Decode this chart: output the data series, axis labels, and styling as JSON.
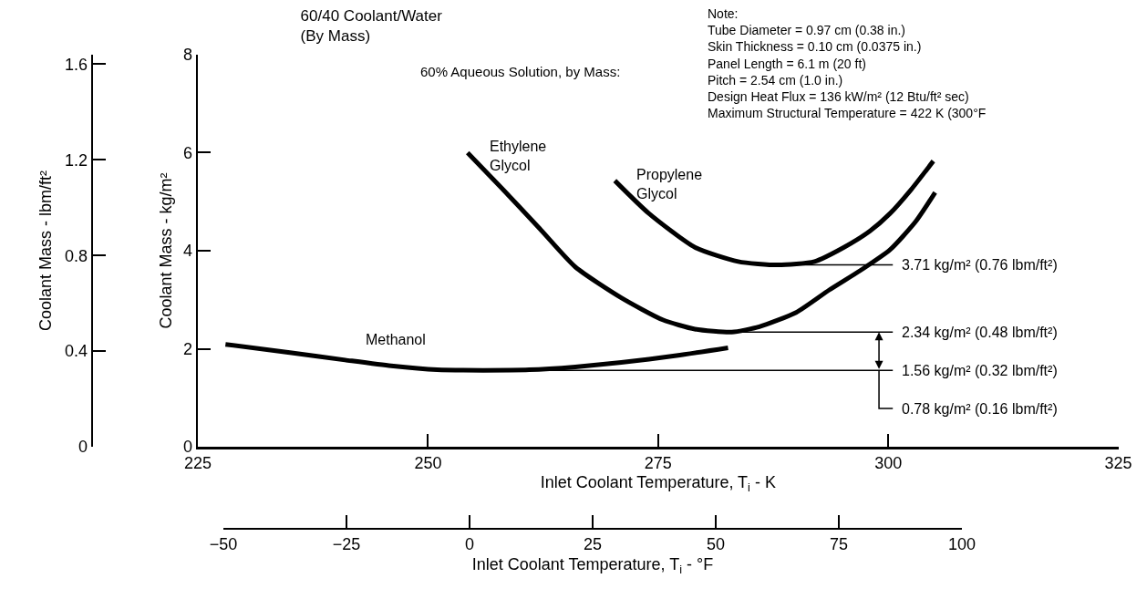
{
  "chart_data": {
    "type": "line",
    "title": "60/40 Coolant/Water",
    "subtitle": "(By Mass)",
    "xlabel": "Inlet Coolant Temperature, T$_{i}$ - K",
    "ylabel": "Coolant Mass - kg/m²",
    "y2label": "Coolant Mass - lbm/ft²",
    "x2label": "Inlet Coolant Temperature, T$_{i}$ - °F",
    "xlim": [
      225,
      325
    ],
    "xticks": [
      225,
      250,
      275,
      300,
      325
    ],
    "ylim": [
      0,
      8
    ],
    "yticks": [
      0,
      2,
      4,
      6,
      8
    ],
    "y2lim": [
      0,
      1.64
    ],
    "y2ticks": [
      0,
      0.4,
      0.8,
      1.2,
      1.6
    ],
    "x2lim": [
      -50,
      100
    ],
    "x2ticks": [
      {
        "value": -50,
        "label": "−50"
      },
      {
        "value": -25,
        "label": "−25"
      },
      0,
      25,
      50,
      75,
      100
    ],
    "marker": "none",
    "line_style": "solid",
    "series": [
      {
        "name": "Ethylene Glycol",
        "color": "#000000",
        "x": [
          254.3,
          258,
          262,
          266,
          271,
          275.5,
          279,
          283,
          286,
          290,
          293.6,
          297,
          300.2,
          303,
          305.1
        ],
        "values": [
          6.0,
          5.28,
          4.48,
          3.67,
          3.04,
          2.59,
          2.4,
          2.34,
          2.45,
          2.74,
          3.2,
          3.6,
          4.02,
          4.6,
          5.19
        ]
      },
      {
        "name": "Propylene Glycol",
        "color": "#000000",
        "x": [
          270.3,
          274,
          279,
          283.7,
          288,
          292,
          295.2,
          298,
          300.2,
          302.5,
          304.9
        ],
        "values": [
          5.43,
          4.76,
          4.07,
          3.78,
          3.71,
          3.78,
          4.07,
          4.4,
          4.76,
          5.25,
          5.83
        ]
      },
      {
        "name": "Methanol",
        "color": "#000000",
        "x": [
          228,
          235,
          241,
          246,
          251,
          256,
          261,
          266,
          271,
          277,
          282.6
        ],
        "values": [
          2.09,
          1.92,
          1.77,
          1.65,
          1.57,
          1.56,
          1.57,
          1.63,
          1.72,
          1.86,
          2.02
        ]
      }
    ],
    "ref_lines": [
      {
        "axis": "y",
        "value": 3.71,
        "label": "3.71 kg/m² (0.76 lbm/ft²)",
        "color": "#000000"
      },
      {
        "axis": "y",
        "value": 2.34,
        "label": "2.34 kg/m² (0.48 lbm/ft²)",
        "color": "#000000"
      },
      {
        "axis": "y",
        "value": 1.56,
        "label": "1.56 kg/m² (0.32 lbm/ft²)",
        "color": "#000000"
      }
    ],
    "annotations": [
      "Note:\nTube Diameter = 0.97 cm (0.38 in.)\nSkin Thickness = 0.10 cm (0.0375 in.)\nPanel Length = 6.1 m (20 ft)\nPitch = 2.54 cm (1.0 in.)\nDesign Heat Flux = 136 kW/m² (12 Btu/ft² sec)\nMaximum Structural Temperature = 422 K (300°F",
      "60% Aqueous Solution, by Mass:",
      {
        "text": "0.78 kg/m² (0.16 lbm/ft²)",
        "x": 299,
        "y": 1.56
      }
    ]
  }
}
